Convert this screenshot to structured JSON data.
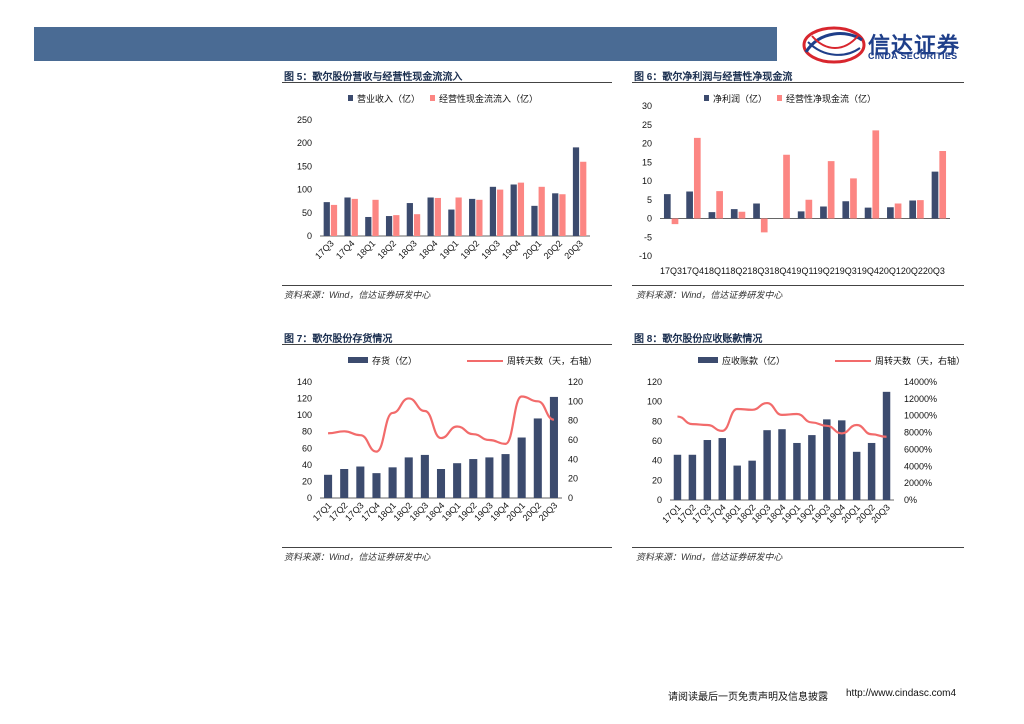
{
  "brand": {
    "name_cn": "信达证券",
    "name_en": "CINDA SECURITIES"
  },
  "colors": {
    "navy": "#3c4b6e",
    "pink": "#fc8683",
    "line_pink": "#f26b6b",
    "header": "#4a6b94"
  },
  "source_text": "资料来源：Wind，信达证券研发中心",
  "footer": {
    "disclaimer": "请阅读最后一页免责声明及信息披露",
    "url": "http://www.cindasc.com",
    "page": "4"
  },
  "panels": {
    "fig5": {
      "title": "图 5：歌尔股份营收与经营性现金流流入"
    },
    "fig6": {
      "title": "图 6：歌尔净利润与经营性净现金流"
    },
    "fig7": {
      "title": "图 7：歌尔股份存货情况"
    },
    "fig8": {
      "title": "图 8：歌尔股份应收账款情况"
    }
  },
  "chart_data": [
    {
      "id": "fig5",
      "type": "bar",
      "categories": [
        "17Q3",
        "17Q4",
        "18Q1",
        "18Q2",
        "18Q3",
        "18Q4",
        "19Q1",
        "19Q2",
        "19Q3",
        "19Q4",
        "20Q1",
        "20Q2",
        "20Q3"
      ],
      "series": [
        {
          "name": "营业收入（亿）",
          "values": [
            73,
            83,
            41,
            43,
            71,
            83,
            57,
            80,
            106,
            111,
            65,
            92,
            191
          ]
        },
        {
          "name": "经营性现金流流入（亿）",
          "values": [
            67,
            80,
            78,
            45,
            47,
            82,
            83,
            78,
            100,
            115,
            106,
            90,
            160
          ]
        }
      ],
      "ylim": [
        0,
        250
      ],
      "yticks": [
        0,
        50,
        100,
        150,
        200,
        250
      ]
    },
    {
      "id": "fig6",
      "type": "bar",
      "categories": [
        "17Q3",
        "17Q4",
        "18Q1",
        "18Q2",
        "18Q3",
        "18Q4",
        "19Q1",
        "19Q2",
        "19Q3",
        "19Q4",
        "20Q1",
        "20Q2",
        "20Q3"
      ],
      "category_label": "17Q317Q418Q118Q218Q318Q419Q119Q219Q319Q420Q120Q220Q3",
      "series": [
        {
          "name": "净利润（亿）",
          "values": [
            6.5,
            7.2,
            1.7,
            2.5,
            4.0,
            0,
            1.9,
            3.2,
            4.6,
            2.9,
            3.0,
            4.8,
            12.5
          ]
        },
        {
          "name": "经营性净现金流（亿）",
          "values": [
            -1.5,
            21.5,
            7.3,
            1.8,
            -3.7,
            17.0,
            5.0,
            15.3,
            10.7,
            23.5,
            4.0,
            4.9,
            18.0
          ]
        }
      ],
      "ylim": [
        -10,
        30
      ],
      "yticks": [
        -10,
        -5,
        0,
        5,
        10,
        15,
        20,
        25,
        30
      ]
    },
    {
      "id": "fig7",
      "type": "bar",
      "categories": [
        "17Q1",
        "17Q2",
        "17Q3",
        "17Q4",
        "18Q1",
        "18Q2",
        "18Q3",
        "18Q4",
        "19Q1",
        "19Q2",
        "19Q3",
        "19Q4",
        "20Q1",
        "20Q2",
        "20Q3"
      ],
      "series": [
        {
          "name": "存货（亿）",
          "values": [
            28,
            35,
            38,
            30,
            37,
            49,
            52,
            35,
            42,
            47,
            49,
            53,
            73,
            96,
            122
          ]
        },
        {
          "name": "周转天数（天，右轴）",
          "axis": "right",
          "values": [
            67,
            69,
            65,
            48,
            88,
            103,
            90,
            62,
            74,
            66,
            60,
            56,
            105,
            100,
            81
          ]
        }
      ],
      "ylim": [
        0,
        140
      ],
      "yticks": [
        0,
        20,
        40,
        60,
        80,
        100,
        120,
        140
      ],
      "y2lim": [
        0,
        120
      ],
      "y2ticks": [
        0,
        20,
        40,
        60,
        80,
        100,
        120
      ]
    },
    {
      "id": "fig8",
      "type": "bar",
      "categories": [
        "17Q1",
        "17Q2",
        "17Q3",
        "17Q4",
        "18Q1",
        "18Q2",
        "18Q3",
        "18Q4",
        "19Q1",
        "19Q2",
        "19Q3",
        "19Q4",
        "20Q1",
        "20Q2",
        "20Q3"
      ],
      "series": [
        {
          "name": "应收账款（亿）",
          "values": [
            46,
            46,
            61,
            63,
            35,
            40,
            71,
            72,
            58,
            66,
            82,
            81,
            49,
            58,
            110
          ]
        },
        {
          "name": "周转天数（天，右轴）",
          "axis": "right",
          "values": [
            9900,
            9000,
            8900,
            8200,
            10800,
            10700,
            11500,
            10100,
            10200,
            9200,
            8800,
            7900,
            8900,
            7800,
            7500
          ]
        }
      ],
      "ylim": [
        0,
        120
      ],
      "yticks": [
        0,
        20,
        40,
        60,
        80,
        100,
        120
      ],
      "y2lim": [
        0,
        14000
      ],
      "y2ticks": [
        "0%",
        "2000%",
        "4000%",
        "6000%",
        "8000%",
        "10000%",
        "12000%",
        "14000%"
      ]
    }
  ]
}
